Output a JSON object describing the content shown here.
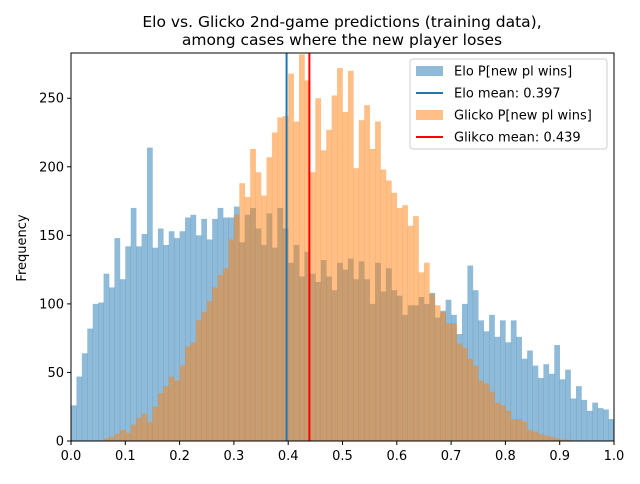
{
  "chart_data": {
    "type": "bar",
    "title_lines": [
      "Elo vs. Glicko 2nd-game predictions (training data),",
      "among cases where the new player loses"
    ],
    "xlabel": "",
    "ylabel": "Frequency",
    "xlim": [
      0.0,
      1.0
    ],
    "ylim": [
      0,
      283
    ],
    "x_ticks": [
      0.0,
      0.1,
      0.2,
      0.3,
      0.4,
      0.5,
      0.6,
      0.7,
      0.8,
      0.9,
      1.0
    ],
    "x_tick_labels": [
      "0.0",
      "0.1",
      "0.2",
      "0.3",
      "0.4",
      "0.5",
      "0.6",
      "0.7",
      "0.8",
      "0.9",
      "1.0"
    ],
    "y_ticks": [
      0,
      50,
      100,
      150,
      200,
      250
    ],
    "y_tick_labels": [
      "0",
      "50",
      "100",
      "150",
      "200",
      "250"
    ],
    "grid": false,
    "legend_position": "top-right",
    "bin_width": 0.01,
    "series": [
      {
        "name": "Elo P[new pl wins]",
        "color": "#1f77b4",
        "opacity": 0.5,
        "bin_start": 0.0,
        "values": [
          26,
          47,
          64,
          82,
          100,
          101,
          122,
          112,
          148,
          118,
          142,
          170,
          142,
          151,
          214,
          141,
          155,
          143,
          153,
          148,
          153,
          163,
          165,
          150,
          162,
          147,
          162,
          170,
          163,
          163,
          171,
          145,
          165,
          170,
          155,
          143,
          166,
          141,
          170,
          155,
          130,
          143,
          120,
          138,
          122,
          116,
          132,
          120,
          110,
          130,
          125,
          133,
          118,
          131,
          118,
          100,
          130,
          109,
          126,
          110,
          106,
          92,
          99,
          99,
          105,
          100,
          108,
          90,
          95,
          103,
          92,
          78,
          100,
          128,
          110,
          88,
          80,
          92,
          76,
          88,
          72,
          88,
          76,
          60,
          66,
          55,
          46,
          56,
          49,
          70,
          45,
          52,
          31,
          40,
          30,
          22,
          28,
          24,
          23,
          16
        ]
      },
      {
        "name": "Glicko P[new pl wins]",
        "color": "#ff7f0e",
        "opacity": 0.5,
        "bin_start": 0.0,
        "values": [
          0,
          0,
          0,
          0,
          0,
          0,
          2,
          3,
          5,
          8,
          6,
          12,
          17,
          20,
          14,
          25,
          35,
          40,
          47,
          44,
          55,
          69,
          72,
          88,
          94,
          102,
          112,
          121,
          126,
          147,
          165,
          188,
          178,
          213,
          196,
          179,
          207,
          225,
          236,
          237,
          268,
          233,
          282,
          263,
          196,
          250,
          212,
          227,
          252,
          272,
          240,
          270,
          199,
          234,
          245,
          213,
          233,
          198,
          190,
          181,
          170,
          172,
          157,
          164,
          123,
          130,
          107,
          99,
          94,
          86,
          86,
          71,
          68,
          60,
          55,
          44,
          42,
          36,
          28,
          26,
          22,
          16,
          16,
          14,
          8,
          7,
          5,
          4,
          3,
          2,
          1,
          1,
          0,
          0,
          0,
          0,
          0,
          0,
          0,
          0
        ]
      }
    ],
    "vlines": [
      {
        "name": "Elo mean: 0.397",
        "x": 0.397,
        "color": "#1f77b4"
      },
      {
        "name": "Glikco mean: 0.439",
        "x": 0.439,
        "color": "#ff0000"
      }
    ],
    "legend": [
      {
        "label": "Elo P[new pl wins]",
        "kind": "patch",
        "color": "#1f77b4"
      },
      {
        "label": "Elo mean: 0.397",
        "kind": "line",
        "color": "#1f77b4"
      },
      {
        "label": "Glicko P[new pl wins]",
        "kind": "patch",
        "color": "#ff7f0e"
      },
      {
        "label": "Glikco mean: 0.439",
        "kind": "line",
        "color": "#ff0000"
      }
    ]
  }
}
